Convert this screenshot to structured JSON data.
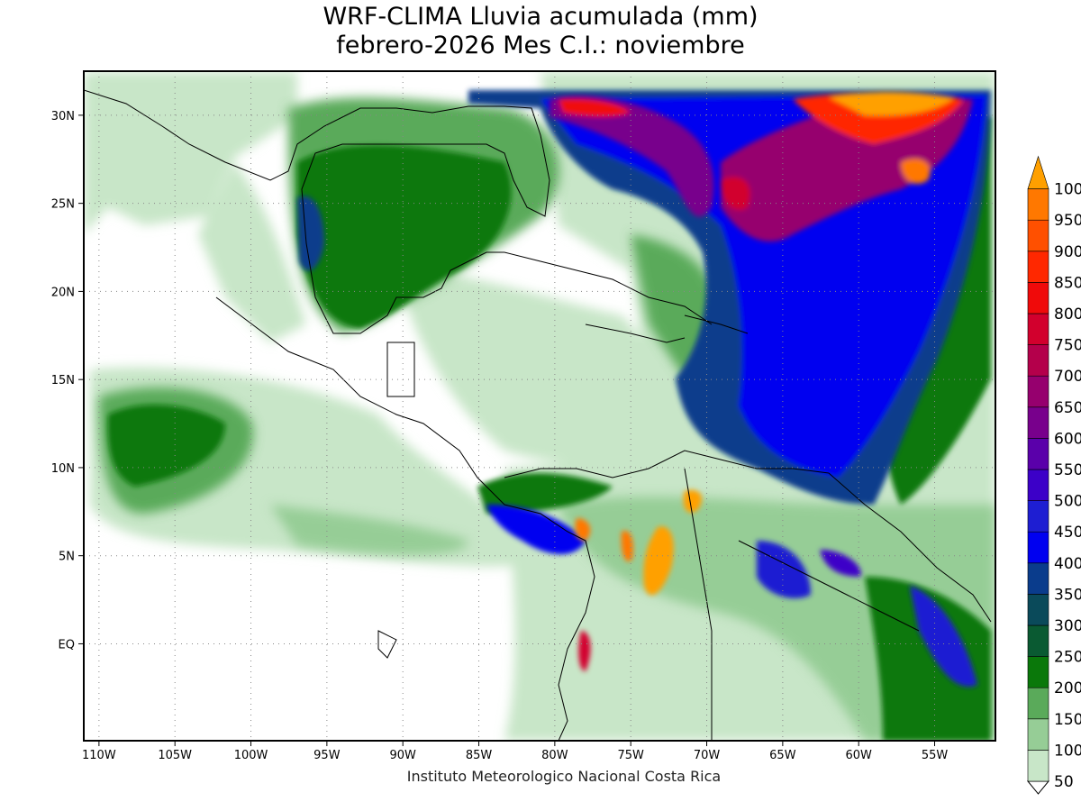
{
  "title": {
    "line1": "WRF-CLIMA Lluvia acumulada (mm)",
    "line2": "febrero-2026 Mes C.I.: noviembre"
  },
  "credit": "Instituto Meteorologico Nacional Costa Rica",
  "map": {
    "lon_range": [
      -111,
      -51
    ],
    "lat_range": [
      -5.5,
      32.5
    ],
    "x_ticks": [
      {
        "lon": -110,
        "label": "110W"
      },
      {
        "lon": -105,
        "label": "105W"
      },
      {
        "lon": -100,
        "label": "100W"
      },
      {
        "lon": -95,
        "label": "95W"
      },
      {
        "lon": -90,
        "label": "90W"
      },
      {
        "lon": -85,
        "label": "85W"
      },
      {
        "lon": -80,
        "label": "80W"
      },
      {
        "lon": -75,
        "label": "75W"
      },
      {
        "lon": -70,
        "label": "70W"
      },
      {
        "lon": -65,
        "label": "65W"
      },
      {
        "lon": -60,
        "label": "60W"
      },
      {
        "lon": -55,
        "label": "55W"
      }
    ],
    "y_ticks": [
      {
        "lat": 30,
        "label": "30N"
      },
      {
        "lat": 25,
        "label": "25N"
      },
      {
        "lat": 20,
        "label": "20N"
      },
      {
        "lat": 15,
        "label": "15N"
      },
      {
        "lat": 10,
        "label": "10N"
      },
      {
        "lat": 5,
        "label": "5N"
      },
      {
        "lat": 0,
        "label": "EQ"
      }
    ],
    "grid": "dotted"
  },
  "colorbar": {
    "units": "mm",
    "levels": [
      {
        "label": "50",
        "color": "#c8e6c8"
      },
      {
        "label": "100",
        "color": "#96cd96"
      },
      {
        "label": "150",
        "color": "#5aaa5a"
      },
      {
        "label": "200",
        "color": "#0a780a"
      },
      {
        "label": "250",
        "color": "#0a5a32"
      },
      {
        "label": "300",
        "color": "#0a4a5a"
      },
      {
        "label": "350",
        "color": "#0a3c8c"
      },
      {
        "label": "400",
        "color": "#0000f0"
      },
      {
        "label": "450",
        "color": "#1e1ed2"
      },
      {
        "label": "500",
        "color": "#3c00c8"
      },
      {
        "label": "550",
        "color": "#5a00aa"
      },
      {
        "label": "600",
        "color": "#78008c"
      },
      {
        "label": "650",
        "color": "#96006e"
      },
      {
        "label": "700",
        "color": "#b4004b"
      },
      {
        "label": "750",
        "color": "#d2002d"
      },
      {
        "label": "800",
        "color": "#f00a0a"
      },
      {
        "label": "850",
        "color": "#ff2800"
      },
      {
        "label": "900",
        "color": "#ff5000"
      },
      {
        "label": "950",
        "color": "#ff7800"
      },
      {
        "label": "1000",
        "color": "#ffa000"
      }
    ]
  },
  "rain_regions": [
    {
      "name": "atlantic-north-band",
      "level": 7
    },
    {
      "name": "atlantic-core",
      "level": 8
    },
    {
      "name": "gulf-of-mexico",
      "level": 3
    },
    {
      "name": "caribbean-east",
      "level": 7
    },
    {
      "name": "pacific-itcz",
      "level": 2
    },
    {
      "name": "colombia-andes",
      "level": 17
    },
    {
      "name": "guianas",
      "level": 4
    }
  ]
}
